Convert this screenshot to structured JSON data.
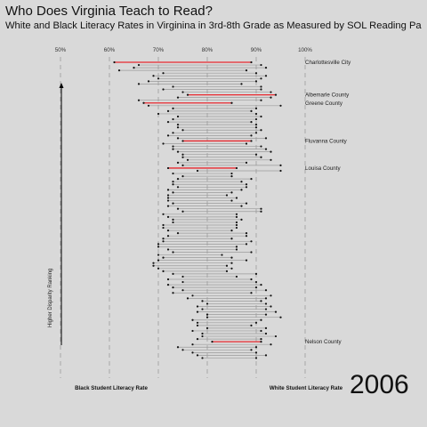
{
  "chart_data": {
    "type": "dumbbell",
    "title": "Who Does Virginia Teach to Read?",
    "subtitle": "White and Black Literacy Rates in Virginina in 3rd-8th Grade as Measured by SOL Reading Pa",
    "xlabel_left": "Black Student Literacy Rate",
    "xlabel_right": "White Student Literacy Rate",
    "ylabel": "Higher Disparity Ranking",
    "year": "2006",
    "xlim": [
      47,
      103
    ],
    "x_ticks": [
      "50%",
      "60%",
      "70%",
      "80%",
      "90%",
      "100%"
    ],
    "x_tick_values": [
      50,
      60,
      70,
      80,
      90,
      100
    ],
    "grid": false,
    "colors": {
      "background": "#d9d9d9",
      "highlight": "#e8292f",
      "segment": "#9a9a9a",
      "point": "#111111",
      "gridline": "#a6a6a6"
    },
    "labeled_counties": [
      {
        "name": "Charlottesville City",
        "rank": 1
      },
      {
        "name": "Albemarle County",
        "rank": 13
      },
      {
        "name": "Greene County",
        "rank": 16
      },
      {
        "name": "Fluvanna County",
        "rank": 30
      },
      {
        "name": "Louisa County",
        "rank": 40
      },
      {
        "name": "Nelson County",
        "rank": 104
      }
    ],
    "highlight_ranks": [
      1,
      13,
      16,
      30,
      40,
      104
    ],
    "series": [
      {
        "name": "Black Student Literacy Rate",
        "values": [
          61,
          66,
          65,
          62,
          71,
          69,
          70,
          68,
          66,
          73,
          71,
          75,
          76,
          74,
          66,
          67,
          68,
          73,
          72,
          70,
          74,
          73,
          72,
          74,
          74,
          75,
          73,
          72,
          74,
          75,
          71,
          73,
          73,
          74,
          75,
          75,
          76,
          74,
          75,
          72,
          78,
          73,
          75,
          74,
          73,
          73,
          74,
          72,
          73,
          72,
          72,
          72,
          73,
          72,
          74,
          75,
          71,
          72,
          73,
          73,
          71,
          71,
          72,
          74,
          72,
          71,
          71,
          70,
          70,
          72,
          73,
          70,
          71,
          70,
          69,
          69,
          70,
          71,
          73,
          75,
          72,
          75,
          72,
          73,
          75,
          73,
          77,
          76,
          79,
          80,
          78,
          79,
          78,
          80,
          80,
          77,
          78,
          78,
          80,
          77,
          79,
          79,
          78,
          81,
          77,
          74,
          75,
          77,
          78,
          79
        ]
      },
      {
        "name": "White Student Literacy Rate",
        "values": [
          89,
          91,
          92,
          88,
          90,
          92,
          91,
          90,
          87,
          91,
          91,
          93,
          94,
          93,
          91,
          85,
          95,
          90,
          89,
          90,
          91,
          90,
          89,
          90,
          90,
          91,
          90,
          89,
          92,
          89,
          88,
          91,
          92,
          93,
          90,
          91,
          93,
          88,
          95,
          86,
          95,
          85,
          85,
          89,
          87,
          88,
          88,
          87,
          85,
          84,
          86,
          85,
          88,
          87,
          91,
          91,
          86,
          86,
          87,
          86,
          86,
          86,
          85,
          88,
          88,
          85,
          89,
          88,
          86,
          86,
          89,
          83,
          85,
          88,
          85,
          84,
          85,
          84,
          90,
          86,
          89,
          90,
          91,
          90,
          92,
          89,
          93,
          92,
          91,
          92,
          93,
          92,
          94,
          92,
          95,
          91,
          90,
          89,
          92,
          91,
          92,
          94,
          91,
          91,
          93,
          90,
          89,
          90,
          92,
          90
        ]
      }
    ]
  }
}
